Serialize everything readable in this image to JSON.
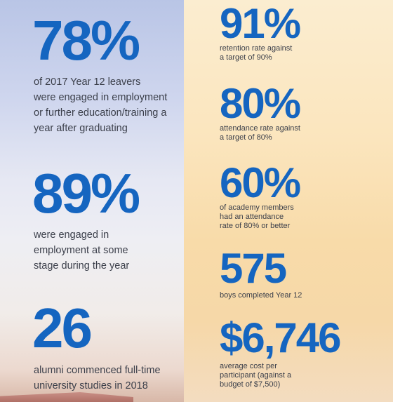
{
  "left": [
    {
      "figure": "78%",
      "text": [
        "of 2017 Year 12 leavers",
        "were engaged in employment",
        "or further education/training a",
        "year after graduating"
      ]
    },
    {
      "figure": "89%",
      "text": [
        "were engaged in",
        "employment at some",
        "stage during the year"
      ]
    },
    {
      "figure": "26",
      "text": [
        "alumni commenced full-time",
        "university studies in 2018"
      ]
    }
  ],
  "right": [
    {
      "figure": "91%",
      "text": [
        "retention rate against",
        "a target of 90%"
      ]
    },
    {
      "figure": "80%",
      "text": [
        "attendance rate against",
        "a target of 80%"
      ]
    },
    {
      "figure": "60%",
      "text": [
        "of academy members",
        "had an attendance",
        "rate of 80% or better"
      ]
    },
    {
      "figure": "575",
      "text": [
        "boys completed Year 12"
      ]
    },
    {
      "figure": "$6,746",
      "text": [
        "average cost per",
        "participant (against a",
        "budget of $7,500)"
      ]
    }
  ],
  "colors": {
    "figure": "#1565c0",
    "text": "#3b3f4a"
  }
}
